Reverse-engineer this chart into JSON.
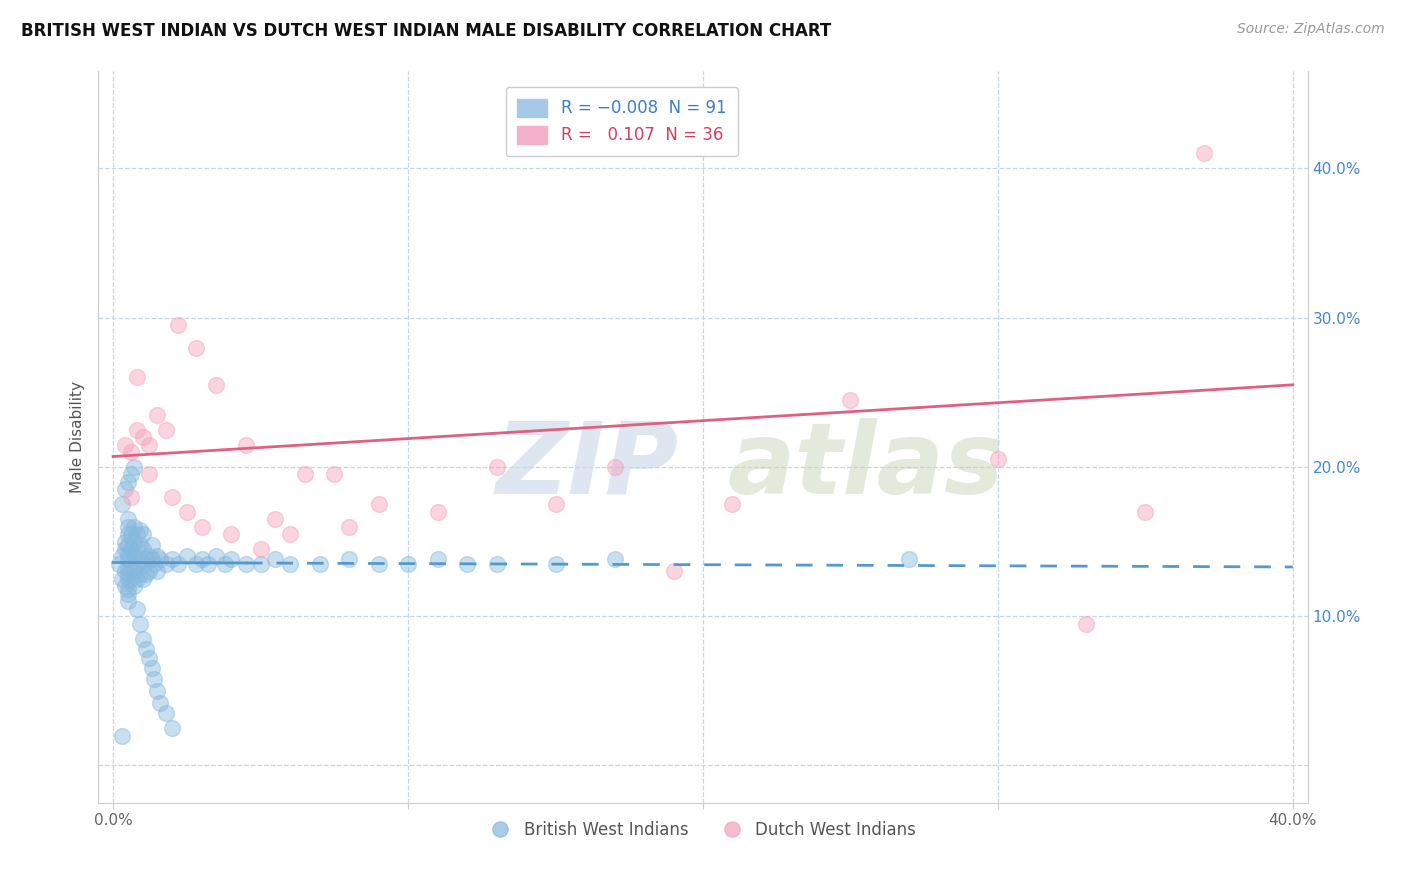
{
  "title": "BRITISH WEST INDIAN VS DUTCH WEST INDIAN MALE DISABILITY CORRELATION CHART",
  "source": "Source: ZipAtlas.com",
  "ylabel": "Male Disability",
  "xlim": [
    -0.005,
    0.405
  ],
  "ylim": [
    -0.025,
    0.465
  ],
  "x_ticks": [
    0.0,
    0.1,
    0.2,
    0.3,
    0.4
  ],
  "x_tick_labels": [
    "0.0%",
    "",
    "",
    "",
    "40.0%"
  ],
  "y_ticks": [
    0.0,
    0.1,
    0.2,
    0.3,
    0.4
  ],
  "y_tick_labels_right": [
    "",
    "10.0%",
    "20.0%",
    "30.0%",
    "40.0%"
  ],
  "blue_color": "#85b8de",
  "pink_color": "#f4a0b8",
  "blue_line_color": "#5599cc",
  "pink_line_color": "#e06080",
  "background_color": "#ffffff",
  "grid_color": "#c5d5e5",
  "watermark_zip_color": "#d0dce8",
  "watermark_atlas_color": "#c8d5c0",
  "legend_blue_text_color": "#3a80c0",
  "legend_pink_text_color": "#d04060",
  "blue_scatter_x": [
    0.002,
    0.003,
    0.003,
    0.004,
    0.004,
    0.004,
    0.004,
    0.005,
    0.005,
    0.005,
    0.005,
    0.005,
    0.005,
    0.005,
    0.005,
    0.005,
    0.005,
    0.005,
    0.005,
    0.006,
    0.006,
    0.006,
    0.006,
    0.007,
    0.007,
    0.007,
    0.007,
    0.007,
    0.008,
    0.008,
    0.008,
    0.008,
    0.009,
    0.009,
    0.009,
    0.009,
    0.01,
    0.01,
    0.01,
    0.01,
    0.011,
    0.011,
    0.012,
    0.012,
    0.013,
    0.013,
    0.014,
    0.015,
    0.015,
    0.016,
    0.018,
    0.02,
    0.022,
    0.025,
    0.028,
    0.03,
    0.032,
    0.035,
    0.038,
    0.04,
    0.045,
    0.05,
    0.055,
    0.06,
    0.07,
    0.08,
    0.09,
    0.1,
    0.11,
    0.12,
    0.13,
    0.15,
    0.17,
    0.003,
    0.004,
    0.005,
    0.006,
    0.007,
    0.008,
    0.009,
    0.01,
    0.011,
    0.012,
    0.013,
    0.014,
    0.015,
    0.016,
    0.018,
    0.02,
    0.003,
    0.27
  ],
  "blue_scatter_y": [
    0.135,
    0.14,
    0.125,
    0.145,
    0.13,
    0.15,
    0.12,
    0.138,
    0.142,
    0.132,
    0.148,
    0.128,
    0.155,
    0.118,
    0.16,
    0.115,
    0.165,
    0.11,
    0.125,
    0.135,
    0.145,
    0.155,
    0.125,
    0.14,
    0.13,
    0.15,
    0.12,
    0.16,
    0.135,
    0.145,
    0.125,
    0.155,
    0.138,
    0.148,
    0.128,
    0.158,
    0.135,
    0.145,
    0.125,
    0.155,
    0.138,
    0.128,
    0.14,
    0.13,
    0.138,
    0.148,
    0.135,
    0.14,
    0.13,
    0.138,
    0.135,
    0.138,
    0.135,
    0.14,
    0.135,
    0.138,
    0.135,
    0.14,
    0.135,
    0.138,
    0.135,
    0.135,
    0.138,
    0.135,
    0.135,
    0.138,
    0.135,
    0.135,
    0.138,
    0.135,
    0.135,
    0.135,
    0.138,
    0.175,
    0.185,
    0.19,
    0.195,
    0.2,
    0.105,
    0.095,
    0.085,
    0.078,
    0.072,
    0.065,
    0.058,
    0.05,
    0.042,
    0.035,
    0.025,
    0.02,
    0.138
  ],
  "pink_scatter_x": [
    0.004,
    0.006,
    0.008,
    0.01,
    0.012,
    0.015,
    0.018,
    0.022,
    0.028,
    0.035,
    0.045,
    0.055,
    0.065,
    0.075,
    0.09,
    0.11,
    0.13,
    0.15,
    0.17,
    0.19,
    0.21,
    0.25,
    0.3,
    0.35,
    0.006,
    0.008,
    0.012,
    0.02,
    0.025,
    0.03,
    0.04,
    0.05,
    0.06,
    0.08,
    0.37,
    0.33
  ],
  "pink_scatter_y": [
    0.215,
    0.21,
    0.225,
    0.22,
    0.215,
    0.235,
    0.225,
    0.295,
    0.28,
    0.255,
    0.215,
    0.165,
    0.195,
    0.195,
    0.175,
    0.17,
    0.2,
    0.175,
    0.2,
    0.13,
    0.175,
    0.245,
    0.205,
    0.17,
    0.18,
    0.26,
    0.195,
    0.18,
    0.17,
    0.16,
    0.155,
    0.145,
    0.155,
    0.16,
    0.41,
    0.095
  ],
  "pink_line_x0": 0.0,
  "pink_line_y0": 0.207,
  "pink_line_x1": 0.4,
  "pink_line_y1": 0.255,
  "blue_line_x0": 0.0,
  "blue_line_y0": 0.136,
  "blue_line_x1": 0.4,
  "blue_line_y1": 0.133
}
